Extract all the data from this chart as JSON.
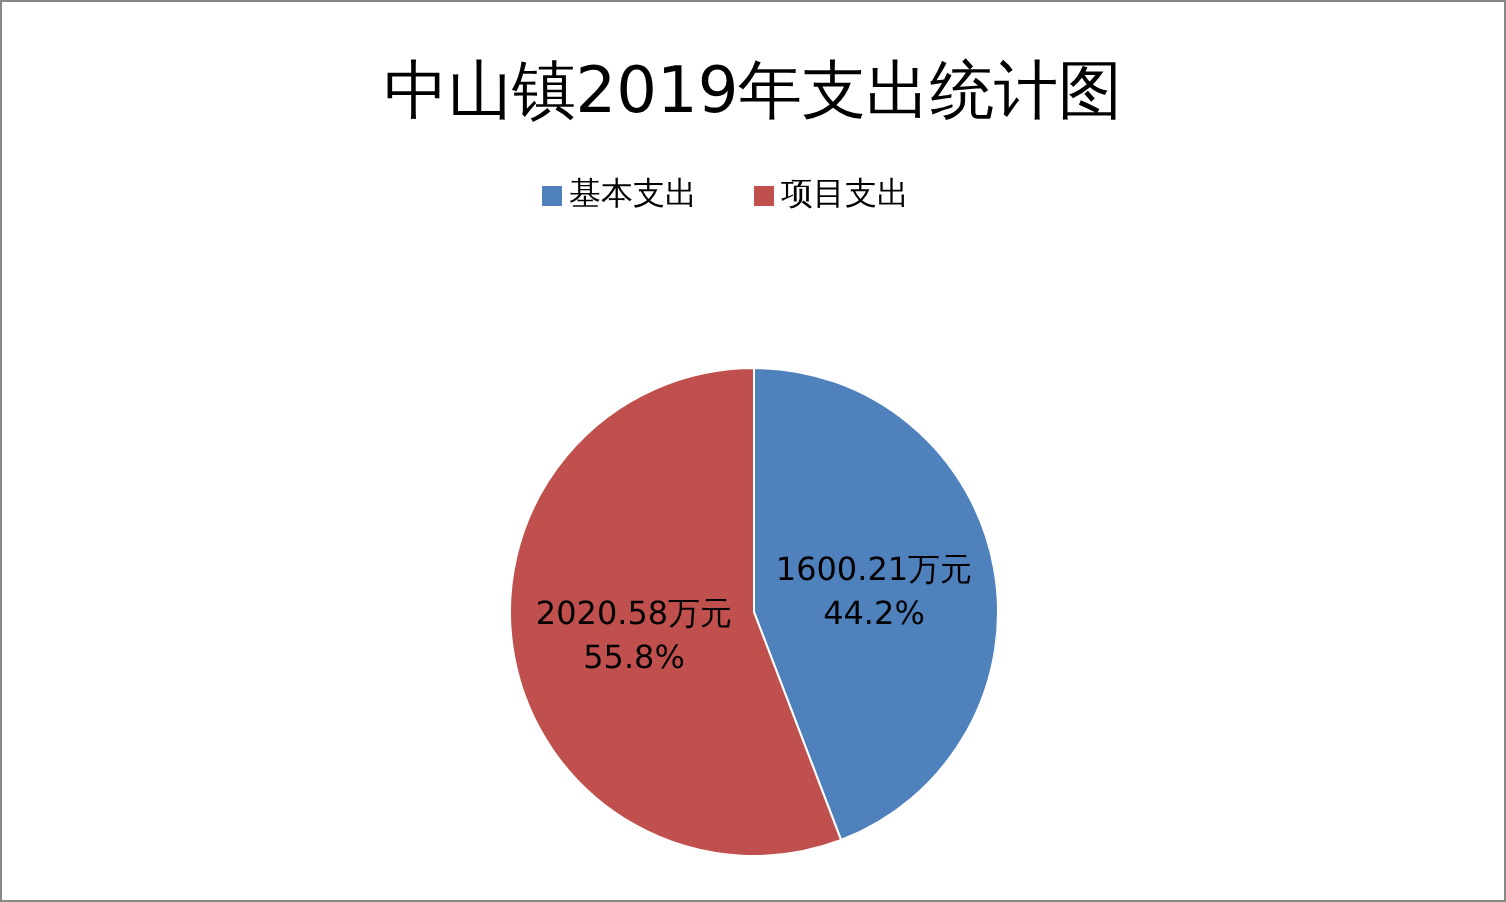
{
  "chart_data": {
    "type": "pie",
    "title": "中山镇2019年支出统计图",
    "categories": [
      "基本支出",
      "项目支出"
    ],
    "values": [
      1600.21,
      2020.58
    ],
    "colors": [
      "#4f81bd",
      "#c0504d"
    ],
    "value_labels": [
      "1600.21万元\n44.2%",
      "2020.58万元\n55.8%"
    ],
    "legend": "top"
  }
}
